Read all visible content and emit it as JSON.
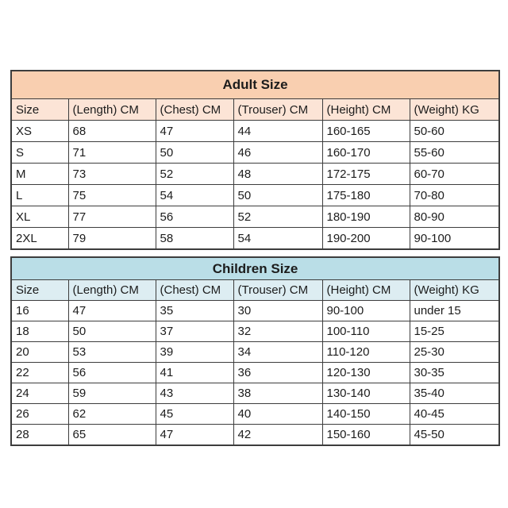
{
  "page": {
    "background": "#ffffff",
    "border_color": "#3d3d3d",
    "text_color": "#1c1c1c"
  },
  "tables": [
    {
      "title": "Adult Size",
      "title_bg": "#f9cfb0",
      "header_bg": "#fce4d6",
      "columns": [
        "Size",
        "(Length) CM",
        "(Chest) CM",
        "(Trouser) CM",
        "(Height) CM",
        "(Weight) KG"
      ],
      "rows": [
        [
          "XS",
          "68",
          "47",
          "44",
          "160-165",
          "50-60"
        ],
        [
          "S",
          "71",
          "50",
          "46",
          "160-170",
          "55-60"
        ],
        [
          "M",
          "73",
          "52",
          "48",
          "172-175",
          "60-70"
        ],
        [
          "L",
          "75",
          "54",
          "50",
          "175-180",
          "70-80"
        ],
        [
          "XL",
          "77",
          "56",
          "52",
          "180-190",
          "80-90"
        ],
        [
          "2XL",
          "79",
          "58",
          "54",
          "190-200",
          "90-100"
        ]
      ]
    },
    {
      "title": "Children Size",
      "title_bg": "#badee7",
      "header_bg": "#ddedf2",
      "columns": [
        "Size",
        "(Length) CM",
        "(Chest) CM",
        "(Trouser) CM",
        "(Height) CM",
        "(Weight) KG"
      ],
      "rows": [
        [
          "16",
          "47",
          "35",
          "30",
          "90-100",
          "under 15"
        ],
        [
          "18",
          "50",
          "37",
          "32",
          "100-110",
          "15-25"
        ],
        [
          "20",
          "53",
          "39",
          "34",
          "110-120",
          "25-30"
        ],
        [
          "22",
          "56",
          "41",
          "36",
          "120-130",
          "30-35"
        ],
        [
          "24",
          "59",
          "43",
          "38",
          "130-140",
          "35-40"
        ],
        [
          "26",
          "62",
          "45",
          "40",
          "140-150",
          "40-45"
        ],
        [
          "28",
          "65",
          "47",
          "42",
          "150-160",
          "45-50"
        ]
      ]
    }
  ]
}
